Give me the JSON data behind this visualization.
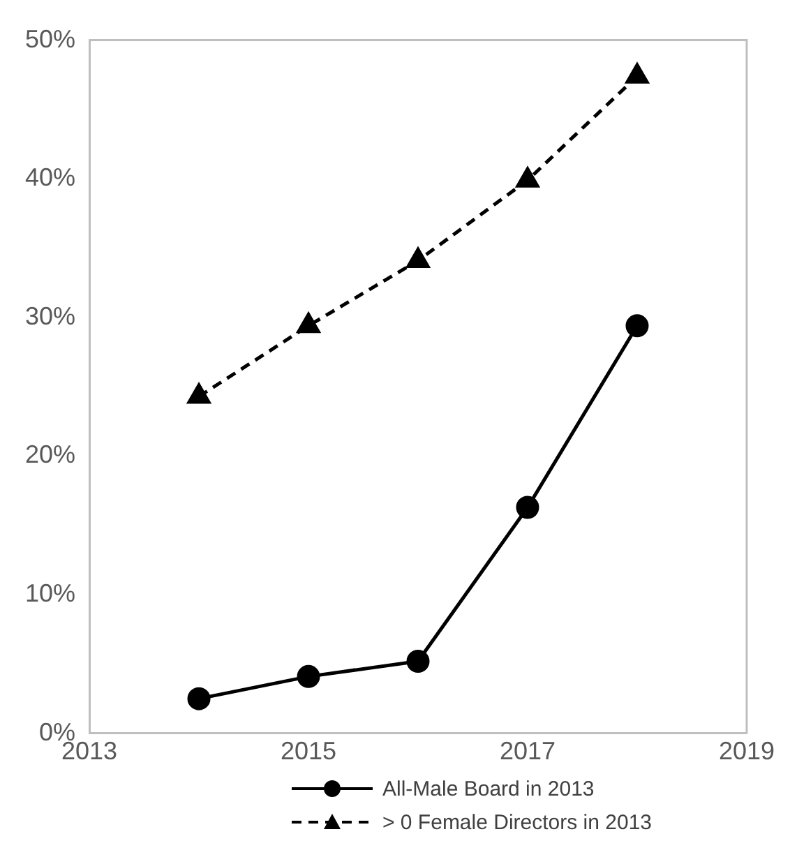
{
  "chart_data": {
    "type": "line",
    "x": [
      2014,
      2015,
      2016,
      2017,
      2018
    ],
    "series": [
      {
        "name": "All-Male Board in 2013",
        "color": "#000000",
        "values": [
          2.5,
          4.1,
          5.2,
          16.3,
          29.4
        ],
        "marker": "circle",
        "line_style": "solid"
      },
      {
        "name": "> 0 Female Directors in 2013",
        "color": "#000000",
        "values": [
          24.3,
          29.4,
          34.1,
          39.9,
          47.4
        ],
        "marker": "triangle",
        "line_style": "dashed"
      }
    ],
    "xlim": [
      2013,
      2019
    ],
    "xticks": [
      2013,
      2015,
      2017,
      2019
    ],
    "ylim": [
      0,
      50
    ],
    "yticks": [
      {
        "value": 0,
        "label": "0%"
      },
      {
        "value": 10,
        "label": "10%"
      },
      {
        "value": 20,
        "label": "20%"
      },
      {
        "value": 30,
        "label": "30%"
      },
      {
        "value": 40,
        "label": "40%"
      },
      {
        "value": 50,
        "label": "50%"
      }
    ],
    "grid": false,
    "legend": "bottom"
  }
}
